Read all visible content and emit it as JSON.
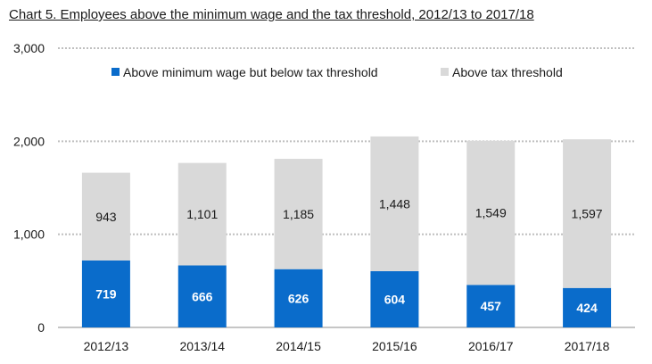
{
  "title": "Chart 5. Employees above the minimum wage and the tax threshold, 2012/13 to 2017/18",
  "colors": {
    "below_threshold": "#0a6ccb",
    "above_threshold": "#d9d9d9",
    "gridline": "#bfbfbf"
  },
  "chart_data": {
    "type": "bar",
    "stacked": true,
    "title": "Chart 5. Employees above the minimum wage and the tax threshold, 2012/13 to 2017/18",
    "xlabel": "",
    "ylabel": "",
    "ylim": [
      0,
      3000
    ],
    "yticks": [
      0,
      1000,
      2000,
      3000
    ],
    "ytick_labels": [
      "0",
      "1,000",
      "2,000",
      "3,000"
    ],
    "grid": true,
    "legend_position": "top",
    "categories": [
      "2012/13",
      "2013/14",
      "2014/15",
      "2015/16",
      "2016/17",
      "2017/18"
    ],
    "series": [
      {
        "name": "Above minimum wage but below tax threshold",
        "values": [
          719,
          666,
          626,
          604,
          457,
          424
        ],
        "labels": [
          "719",
          "666",
          "626",
          "604",
          "457",
          "424"
        ]
      },
      {
        "name": "Above tax threshold",
        "values": [
          943,
          1101,
          1185,
          1448,
          1549,
          1597
        ],
        "labels": [
          "943",
          "1,101",
          "1,185",
          "1,448",
          "1,549",
          "1,597"
        ]
      }
    ]
  }
}
